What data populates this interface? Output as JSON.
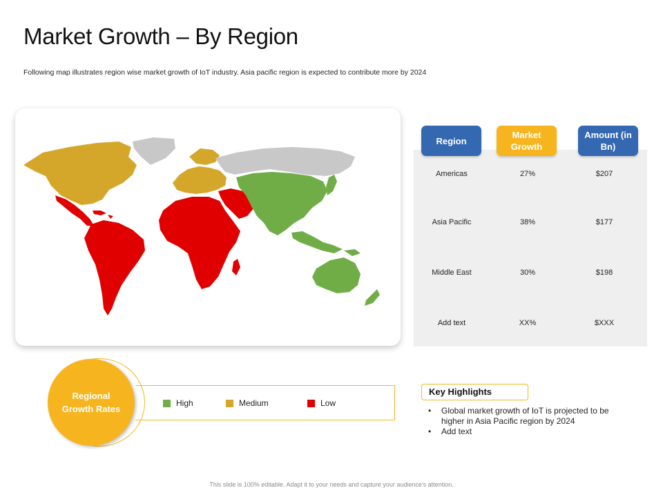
{
  "title": "Market Growth – By Region",
  "subtitle": "Following map illustrates region wise market growth of IoT industry. Asia pacific region is expected to contribute more by 2024",
  "table": {
    "headers": {
      "region": "Region",
      "growth": "Market Growth",
      "amount": "Amount (in Bn)"
    },
    "rows": [
      {
        "region": "Americas",
        "growth": "27%",
        "amount": "$207"
      },
      {
        "region": "Asia Pacific",
        "growth": "38%",
        "amount": "$177"
      },
      {
        "region": "Middle East",
        "growth": "30%",
        "amount": "$198"
      },
      {
        "region": "Add text",
        "growth": "XX%",
        "amount": "$XXX"
      }
    ]
  },
  "legend": {
    "title": "Regional Growth Rates",
    "items": [
      {
        "label": "High",
        "color": "#70ad47"
      },
      {
        "label": "Medium",
        "color": "#d4a62a"
      },
      {
        "label": "Low",
        "color": "#e00000"
      }
    ]
  },
  "highlights": {
    "title": "Key Highlights",
    "items": [
      "Global market growth of IoT is projected to be higher in Asia Pacific region by 2024",
      "Add text"
    ]
  },
  "footer": "This slide is 100% editable. Adapt it to your needs and capture your audience's attention.",
  "colors": {
    "accent_yellow": "#f6b51e",
    "accent_blue": "#3468b1",
    "map_gray": "#c8c8c8"
  }
}
